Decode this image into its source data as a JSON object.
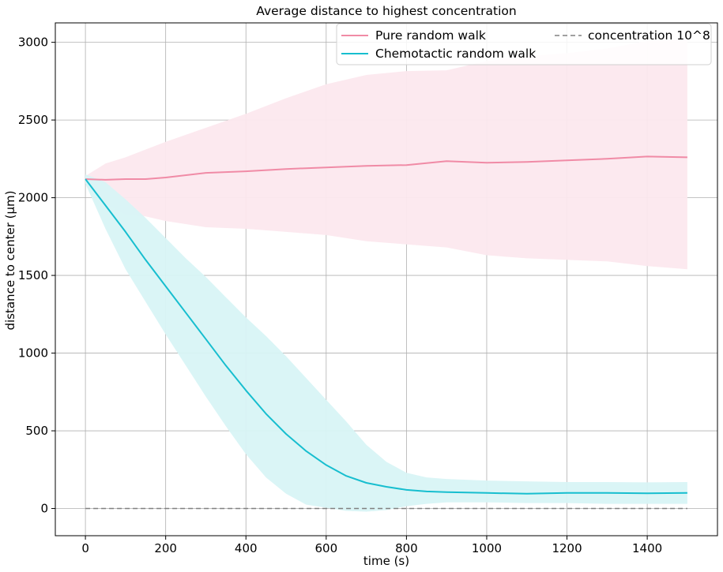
{
  "chart_data": {
    "type": "line",
    "title": "Average distance to highest concentration",
    "xlabel": "time (s)",
    "ylabel": "distance to center (μm)",
    "xlim": [
      -75,
      1575
    ],
    "ylim": [
      -175,
      3125
    ],
    "xticks": [
      0,
      200,
      400,
      600,
      800,
      1000,
      1200,
      1400
    ],
    "yticks": [
      0,
      500,
      1000,
      1500,
      2000,
      2500,
      3000
    ],
    "grid": true,
    "legend_position": "top-right",
    "series": [
      {
        "name": "Pure random walk",
        "color": "#f08ba6",
        "band_color": "#fce8ee",
        "x": [
          0,
          50,
          100,
          150,
          200,
          300,
          400,
          500,
          600,
          700,
          800,
          900,
          1000,
          1100,
          1200,
          1300,
          1400,
          1500
        ],
        "y": [
          2120,
          2115,
          2120,
          2120,
          2130,
          2160,
          2170,
          2185,
          2195,
          2205,
          2210,
          2235,
          2225,
          2230,
          2240,
          2250,
          2265,
          2260
        ],
        "upper": [
          2140,
          2220,
          2260,
          2310,
          2360,
          2450,
          2540,
          2640,
          2730,
          2790,
          2815,
          2820,
          2880,
          2910,
          2930,
          2960,
          3010,
          3020
        ],
        "lower": [
          2100,
          1960,
          1890,
          1880,
          1850,
          1810,
          1800,
          1780,
          1760,
          1720,
          1700,
          1680,
          1630,
          1610,
          1600,
          1590,
          1560,
          1540
        ]
      },
      {
        "name": "Chemotactic random walk",
        "color": "#17becf",
        "band_color": "#d8f4f6",
        "x": [
          0,
          50,
          100,
          150,
          200,
          250,
          300,
          350,
          400,
          450,
          500,
          550,
          600,
          650,
          700,
          750,
          800,
          850,
          900,
          1000,
          1100,
          1200,
          1300,
          1400,
          1500
        ],
        "y": [
          2120,
          1950,
          1780,
          1600,
          1430,
          1260,
          1090,
          920,
          760,
          610,
          480,
          370,
          280,
          210,
          165,
          140,
          120,
          110,
          105,
          100,
          95,
          100,
          100,
          98,
          100
        ],
        "upper": [
          2150,
          2100,
          1990,
          1870,
          1740,
          1610,
          1490,
          1360,
          1230,
          1110,
          980,
          840,
          700,
          560,
          410,
          300,
          230,
          200,
          190,
          180,
          175,
          170,
          170,
          168,
          170
        ],
        "lower": [
          2090,
          1800,
          1540,
          1330,
          1120,
          920,
          720,
          530,
          350,
          200,
          95,
          25,
          5,
          -15,
          -20,
          -10,
          15,
          30,
          40,
          40,
          35,
          35,
          30,
          30,
          30
        ]
      },
      {
        "name": "concentration 10^8",
        "color": "#808080",
        "dashed": true,
        "x": [
          0,
          1500
        ],
        "y": [
          0,
          0
        ]
      }
    ]
  }
}
